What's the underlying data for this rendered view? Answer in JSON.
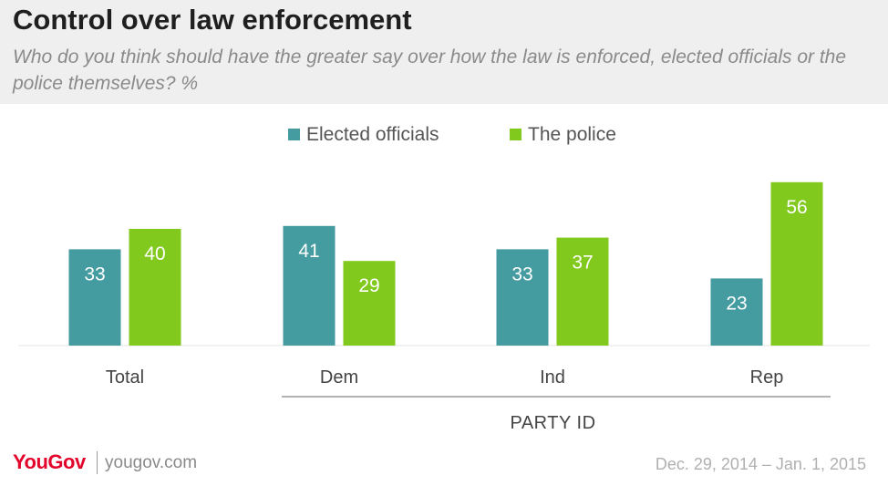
{
  "header": {
    "title": "Control over law enforcement",
    "subtitle": "Who do you think should have the greater say over how the law is enforced, elected officials or the police themselves? %"
  },
  "chart_data": {
    "type": "bar",
    "categories": [
      "Total",
      "Dem",
      "Ind",
      "Rep"
    ],
    "series": [
      {
        "name": "Elected officials",
        "color": "#449ba0",
        "values": [
          33,
          41,
          33,
          23
        ]
      },
      {
        "name": "The police",
        "color": "#82c91e",
        "values": [
          40,
          29,
          37,
          56
        ]
      }
    ],
    "group_label": "PARTY ID",
    "grouped_categories": [
      "Dem",
      "Ind",
      "Rep"
    ],
    "ylim": [
      0,
      60
    ],
    "legend_position": "top-center",
    "grid": false
  },
  "footer": {
    "logo": "YouGov",
    "url": "yougov.com",
    "date": "Dec. 29, 2014 – Jan. 1, 2015"
  }
}
